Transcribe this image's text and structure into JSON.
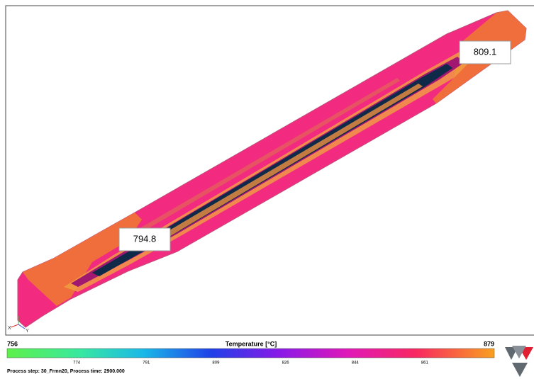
{
  "annotations": [
    {
      "label": "809.1"
    },
    {
      "label": "794.8"
    }
  ],
  "colorbar": {
    "title": "Temperature [°C]",
    "min": "756",
    "max": "879",
    "ticks": [
      "774",
      "791",
      "809",
      "826",
      "844",
      "861"
    ]
  },
  "triad": {
    "x": "X",
    "y": "Y"
  },
  "status": "Process step: 30_Frmn20, Process time: 2900.000"
}
